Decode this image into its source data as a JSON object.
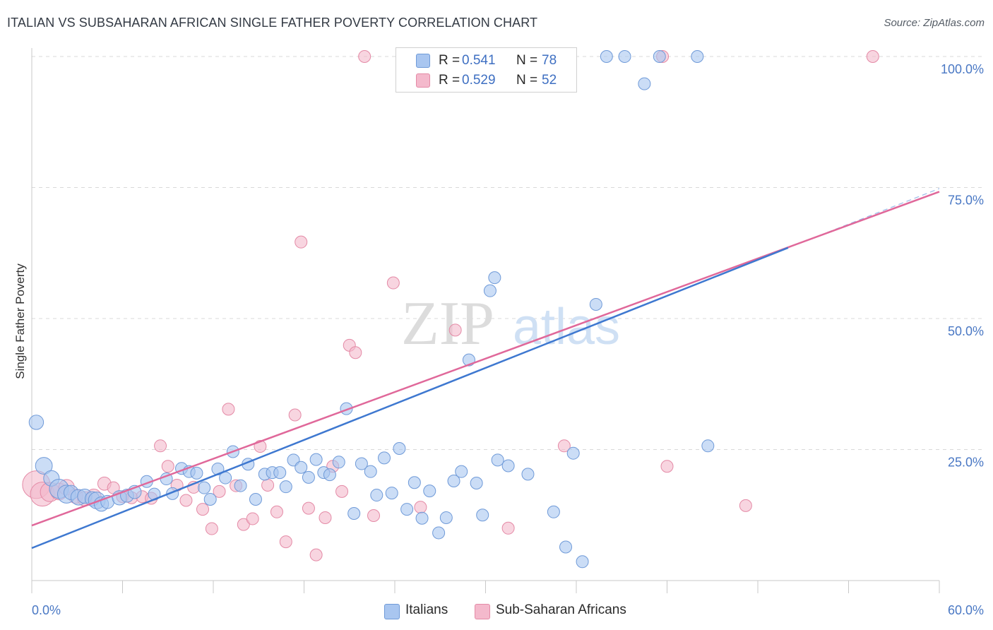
{
  "header": {
    "title": "ITALIAN VS SUBSAHARAN AFRICAN SINGLE FATHER POVERTY CORRELATION CHART",
    "source": "Source: ZipAtlas.com"
  },
  "watermark": {
    "zip": "ZIP",
    "atlas": "atlas"
  },
  "colors": {
    "italians_fill": "#a9c6f0",
    "italians_stroke": "#6f9ad8",
    "italians_line": "#3e78d0",
    "ssa_fill": "#f4b9cc",
    "ssa_stroke": "#e48aa6",
    "ssa_line": "#e0689a",
    "tick_text": "#4a78c4",
    "grid": "#d9d9d9"
  },
  "legend": {
    "rows": [
      {
        "r_label": "R =",
        "r_value": "0.541",
        "n_label": "N =",
        "n_value": "78"
      },
      {
        "r_label": "R =",
        "r_value": "0.529",
        "n_label": "N =",
        "n_value": "52"
      }
    ]
  },
  "chart_data": {
    "type": "scatter",
    "title": "ITALIAN VS SUBSAHARAN AFRICAN SINGLE FATHER POVERTY CORRELATION CHART",
    "xlabel": "",
    "ylabel": "Single Father Poverty",
    "xlim": [
      0,
      60
    ],
    "ylim": [
      0,
      100
    ],
    "x_tick_labels": [
      "0.0%",
      "60.0%"
    ],
    "y_ticks": [
      25,
      50,
      75,
      100
    ],
    "y_tick_labels": [
      "25.0%",
      "50.0%",
      "75.0%",
      "100.0%"
    ],
    "grid": true,
    "legend_position": "top-center",
    "series": [
      {
        "name": "Italians",
        "r": 0.541,
        "n": 78,
        "trend": {
          "x": [
            0,
            50
          ],
          "y": [
            6.2,
            63.5
          ],
          "dashed_extension_to": [
            60,
            74.8
          ]
        },
        "points": [
          [
            0.3,
            30.2,
            1.2
          ],
          [
            0.8,
            21.9,
            1.4
          ],
          [
            1.3,
            19.5,
            1.3
          ],
          [
            1.8,
            17.5,
            1.6
          ],
          [
            2.3,
            16.5,
            1.5
          ],
          [
            2.6,
            16.8,
            1.2
          ],
          [
            3.1,
            15.9,
            1.3
          ],
          [
            3.5,
            16.1,
            1.2
          ],
          [
            4.0,
            15.6,
            1.2
          ],
          [
            4.3,
            15.3,
            1.4
          ],
          [
            4.6,
            14.6,
            1.2
          ],
          [
            5.0,
            15.0,
            1.1
          ],
          [
            5.8,
            15.8,
            1.2
          ],
          [
            6.3,
            16.2,
            1.1
          ],
          [
            6.8,
            16.9,
            1.1
          ],
          [
            7.6,
            18.9,
            1.0
          ],
          [
            8.1,
            16.5,
            1.0
          ],
          [
            8.9,
            19.4,
            1.0
          ],
          [
            9.3,
            16.6,
            1.0
          ],
          [
            9.9,
            21.4,
            1.0
          ],
          [
            10.4,
            20.8,
            1.0
          ],
          [
            10.9,
            20.5,
            1.0
          ],
          [
            11.4,
            17.7,
            1.0
          ],
          [
            11.8,
            15.5,
            1.0
          ],
          [
            12.3,
            21.3,
            1.0
          ],
          [
            12.8,
            19.6,
            1.0
          ],
          [
            13.3,
            24.6,
            1.0
          ],
          [
            13.8,
            18.1,
            1.0
          ],
          [
            14.3,
            22.2,
            1.0
          ],
          [
            14.8,
            15.5,
            1.0
          ],
          [
            15.4,
            20.3,
            1.0
          ],
          [
            15.9,
            20.6,
            1.0
          ],
          [
            16.4,
            20.6,
            1.0
          ],
          [
            16.8,
            17.9,
            1.0
          ],
          [
            17.3,
            23.0,
            1.0
          ],
          [
            17.8,
            21.6,
            1.0
          ],
          [
            18.3,
            19.7,
            1.0
          ],
          [
            18.8,
            23.1,
            1.0
          ],
          [
            19.3,
            20.6,
            1.0
          ],
          [
            19.7,
            20.2,
            1.0
          ],
          [
            20.3,
            22.6,
            1.0
          ],
          [
            20.8,
            32.8,
            1.0
          ],
          [
            21.3,
            12.8,
            1.0
          ],
          [
            21.8,
            22.3,
            1.0
          ],
          [
            22.4,
            20.8,
            1.0
          ],
          [
            22.8,
            16.3,
            1.0
          ],
          [
            23.3,
            23.4,
            1.0
          ],
          [
            23.8,
            16.7,
            1.0
          ],
          [
            24.3,
            25.2,
            1.0
          ],
          [
            24.8,
            13.6,
            1.0
          ],
          [
            25.3,
            18.7,
            1.0
          ],
          [
            25.8,
            11.9,
            1.0
          ],
          [
            26.3,
            17.1,
            1.0
          ],
          [
            26.9,
            9.1,
            1.0
          ],
          [
            27.4,
            12.0,
            1.0
          ],
          [
            27.9,
            19.0,
            1.0
          ],
          [
            28.4,
            20.8,
            1.0
          ],
          [
            28.9,
            42.1,
            1.0
          ],
          [
            29.4,
            18.6,
            1.0
          ],
          [
            29.8,
            12.5,
            1.0
          ],
          [
            30.3,
            55.3,
            1.0
          ],
          [
            30.6,
            57.8,
            1.0
          ],
          [
            30.8,
            23.0,
            1.0
          ],
          [
            31.5,
            21.9,
            1.0
          ],
          [
            32.8,
            20.3,
            1.0
          ],
          [
            34.5,
            13.1,
            1.0
          ],
          [
            35.3,
            6.4,
            1.0
          ],
          [
            35.8,
            24.3,
            1.0
          ],
          [
            36.4,
            3.6,
            1.0
          ],
          [
            37.3,
            52.7,
            1.0
          ],
          [
            38.0,
            100.0,
            1.0
          ],
          [
            39.2,
            100.0,
            1.0
          ],
          [
            40.5,
            94.8,
            1.0
          ],
          [
            41.5,
            100.0,
            1.0
          ],
          [
            44.0,
            100.0,
            1.0
          ],
          [
            44.7,
            25.7,
            1.0
          ],
          [
            25.5,
            100.0,
            1.0
          ],
          [
            34.0,
            100.0,
            1.0
          ]
        ]
      },
      {
        "name": "Sub-Saharan Africans",
        "r": 0.529,
        "n": 52,
        "trend": {
          "x": [
            0,
            60
          ],
          "y": [
            10.5,
            74.2
          ]
        },
        "points": [
          [
            0.3,
            18.3,
            2.3
          ],
          [
            0.7,
            16.5,
            2.0
          ],
          [
            1.2,
            16.9,
            1.6
          ],
          [
            1.8,
            17.0,
            1.4
          ],
          [
            2.3,
            17.8,
            1.3
          ],
          [
            2.9,
            16.1,
            1.2
          ],
          [
            3.5,
            15.6,
            1.2
          ],
          [
            4.1,
            16.1,
            1.2
          ],
          [
            4.8,
            18.5,
            1.1
          ],
          [
            5.4,
            17.7,
            1.0
          ],
          [
            6.0,
            16.0,
            1.0
          ],
          [
            6.6,
            15.8,
            1.0
          ],
          [
            7.3,
            16.0,
            1.0
          ],
          [
            7.9,
            15.7,
            1.0
          ],
          [
            8.5,
            25.7,
            1.0
          ],
          [
            9.0,
            21.8,
            1.0
          ],
          [
            9.6,
            18.2,
            1.0
          ],
          [
            10.2,
            15.3,
            1.0
          ],
          [
            10.7,
            17.8,
            1.0
          ],
          [
            11.3,
            13.6,
            1.0
          ],
          [
            11.9,
            9.9,
            1.0
          ],
          [
            12.4,
            17.0,
            1.0
          ],
          [
            13.0,
            32.7,
            1.0
          ],
          [
            13.5,
            18.1,
            1.0
          ],
          [
            14.0,
            10.7,
            1.0
          ],
          [
            14.6,
            11.8,
            1.0
          ],
          [
            15.1,
            25.6,
            1.0
          ],
          [
            15.6,
            18.2,
            1.0
          ],
          [
            16.2,
            13.1,
            1.0
          ],
          [
            16.8,
            7.4,
            1.0
          ],
          [
            17.4,
            31.6,
            1.0
          ],
          [
            17.8,
            64.6,
            1.0
          ],
          [
            18.3,
            13.8,
            1.0
          ],
          [
            18.8,
            4.9,
            1.0
          ],
          [
            19.4,
            12.0,
            1.0
          ],
          [
            19.9,
            21.8,
            1.0
          ],
          [
            20.5,
            17.0,
            1.0
          ],
          [
            21.0,
            44.9,
            1.0
          ],
          [
            21.4,
            43.5,
            1.0
          ],
          [
            22.0,
            100.0,
            1.0
          ],
          [
            22.6,
            12.4,
            1.0
          ],
          [
            23.9,
            56.8,
            1.0
          ],
          [
            25.7,
            14.0,
            1.0
          ],
          [
            28.0,
            47.8,
            1.0
          ],
          [
            31.5,
            10.0,
            1.0
          ],
          [
            35.2,
            25.7,
            1.0
          ],
          [
            42.0,
            21.8,
            1.0
          ],
          [
            41.7,
            100.0,
            1.0
          ],
          [
            47.2,
            14.3,
            1.0
          ],
          [
            55.6,
            100.0,
            1.0
          ],
          [
            26.0,
            100.0,
            1.0
          ],
          [
            33.8,
            100.0,
            1.0
          ]
        ]
      }
    ]
  },
  "bottom_legend": {
    "items": [
      {
        "label": "Italians"
      },
      {
        "label": "Sub-Saharan Africans"
      }
    ]
  }
}
